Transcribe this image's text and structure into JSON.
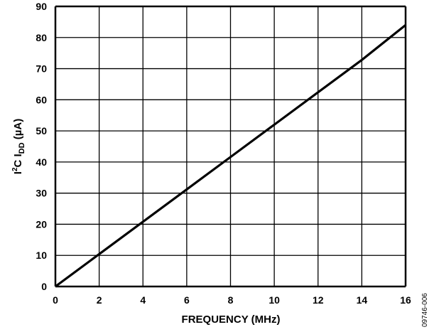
{
  "chart_data": {
    "type": "line",
    "title": "",
    "xlabel": "FREQUENCY (MHz)",
    "ylabel_parts": {
      "main": "I",
      "sup": "2",
      "mid": "C I",
      "sub": "DD",
      "unit": " (µA)"
    },
    "xlim": [
      0,
      16
    ],
    "ylim": [
      0,
      90
    ],
    "xticks": [
      "0",
      "2",
      "4",
      "6",
      "8",
      "10",
      "12",
      "14",
      "16"
    ],
    "yticks": [
      "0",
      "10",
      "20",
      "30",
      "40",
      "50",
      "60",
      "70",
      "80",
      "90"
    ],
    "grid": true,
    "series": [
      {
        "x": [
          0,
          2,
          4,
          6,
          8,
          10,
          12,
          14,
          16
        ],
        "y": [
          0,
          10.4,
          20.8,
          31.2,
          41.6,
          52.0,
          62.4,
          72.8,
          84.0
        ],
        "color": "#000000"
      }
    ],
    "figure_id": "09746-006"
  }
}
